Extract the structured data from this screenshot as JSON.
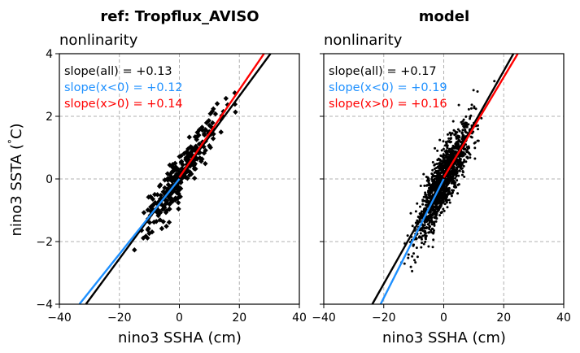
{
  "figure": {
    "ylabel": "nino3 SSTA ($^\\circ$C)",
    "ylabel_main": "nino3 SSTA (",
    "ylabel_deg": "°",
    "ylabel_unit": "C)"
  },
  "colors": {
    "all": "#000000",
    "neg": "#1e90ff",
    "pos": "#ff0000",
    "grid": "#b0b0b0",
    "points": "#000000"
  },
  "chart_data": [
    {
      "type": "scatter",
      "title": "ref: Tropflux_AVISO",
      "subtitle": "nonlinarity",
      "xlabel": "nino3 SSHA (cm)",
      "ylabel": "nino3 SSTA (°C)",
      "xlim": [
        -40,
        40
      ],
      "ylim": [
        -4,
        4
      ],
      "xticks": [
        -40,
        -20,
        0,
        20,
        40
      ],
      "yticks": [
        -4,
        -2,
        0,
        2,
        4
      ],
      "grid": true,
      "marker": "diamond",
      "slope_labels": [
        {
          "key": "all",
          "text": "slope(all) = +0.13"
        },
        {
          "key": "neg",
          "text": "slope(x<0) = +0.12"
        },
        {
          "key": "pos",
          "text": "slope(x>0) = +0.14"
        }
      ],
      "fits": {
        "all": {
          "slope": 0.13,
          "intercept": 0.05
        },
        "neg": {
          "slope": 0.12,
          "intercept": 0.0
        },
        "pos": {
          "slope": 0.14,
          "intercept": 0.05
        }
      },
      "point_cloud": {
        "n": 300,
        "x_mean": 0,
        "x_std": 6,
        "noise_std": 0.35,
        "seed": 7
      }
    },
    {
      "type": "scatter",
      "title": "model",
      "subtitle": "nonlinarity",
      "xlabel": "nino3 SSHA (cm)",
      "ylabel": "",
      "xlim": [
        -40,
        40
      ],
      "ylim": [
        -4,
        4
      ],
      "xticks": [
        -40,
        -20,
        0,
        20,
        40
      ],
      "yticks": [
        -4,
        -2,
        0,
        2,
        4
      ],
      "grid": true,
      "marker": "dot",
      "slope_labels": [
        {
          "key": "all",
          "text": "slope(all) = +0.17"
        },
        {
          "key": "neg",
          "text": "slope(x<0) = +0.19"
        },
        {
          "key": "pos",
          "text": "slope(x>0) = +0.16"
        }
      ],
      "fits": {
        "all": {
          "slope": 0.17,
          "intercept": 0.05
        },
        "neg": {
          "slope": 0.19,
          "intercept": 0.0
        },
        "pos": {
          "slope": 0.16,
          "intercept": 0.05
        }
      },
      "point_cloud": {
        "n": 1500,
        "x_mean": 0,
        "x_std": 4.5,
        "noise_std": 0.45,
        "seed": 13
      }
    }
  ]
}
